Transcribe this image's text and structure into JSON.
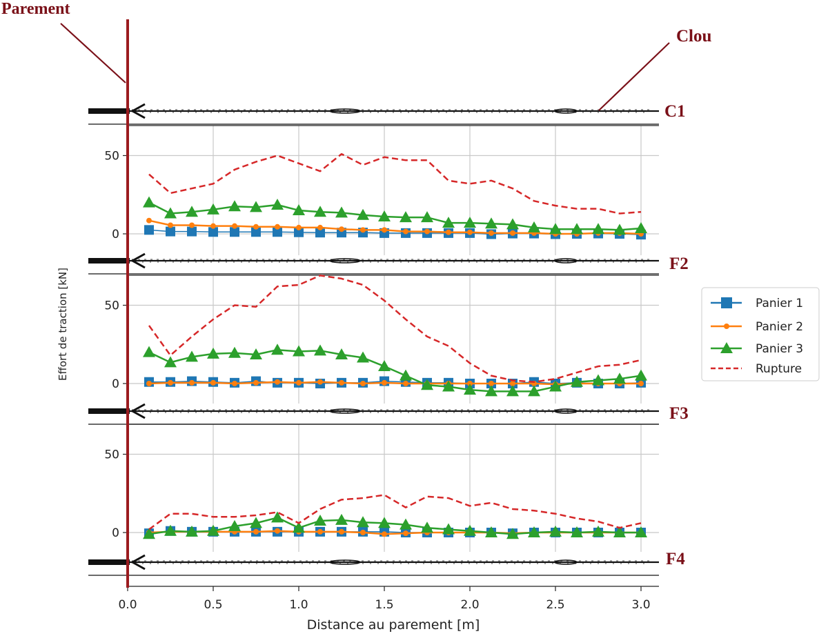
{
  "chart_data": {
    "type": "line",
    "xlabel": "Distance au parement [m]",
    "ylabel": "Effort de traction  [kN]",
    "xlim": [
      0,
      3.1
    ],
    "x_ticks": [
      "0.0",
      "0.5",
      "1.0",
      "1.5",
      "2.0",
      "2.5",
      "3.0"
    ],
    "y_ticks": [
      "0",
      "50"
    ],
    "grid": true,
    "legend": {
      "placement": "right",
      "entries": [
        "Panier 1",
        "Panier 2",
        "Panier 3",
        "Rupture"
      ]
    },
    "colors": {
      "panier1": "#1f77b4",
      "panier2": "#ff7f0e",
      "panier3": "#2ca02c",
      "rupture": "#d62728",
      "annotation": "#7a1018"
    },
    "x": [
      0.125,
      0.25,
      0.375,
      0.5,
      0.625,
      0.75,
      0.875,
      1.0,
      1.125,
      1.25,
      1.375,
      1.5,
      1.625,
      1.75,
      1.875,
      2.0,
      2.125,
      2.25,
      2.375,
      2.5,
      2.625,
      2.75,
      2.875,
      3.0
    ],
    "panels": [
      {
        "label": "C1",
        "series": [
          {
            "name": "Panier 1",
            "values": [
              2.5,
              1.5,
              1.5,
              1.2,
              1.2,
              1.2,
              1.2,
              1,
              0.8,
              0.8,
              0.8,
              0.5,
              0.5,
              0.5,
              0.5,
              0.5,
              -0.2,
              0.2,
              0.2,
              -0.2,
              0,
              0.2,
              0,
              -0.5
            ]
          },
          {
            "name": "Panier 2",
            "values": [
              8.5,
              5.5,
              5.5,
              5,
              5,
              4.5,
              4.5,
              4,
              4,
              3,
              2.5,
              2.5,
              1.5,
              1.5,
              1,
              1,
              0.5,
              0.5,
              0.5,
              0,
              0,
              0.5,
              0.5,
              0
            ]
          },
          {
            "name": "Panier 3",
            "values": [
              20,
              13,
              14,
              15.5,
              17.5,
              17,
              18.5,
              15,
              14,
              13.5,
              12,
              11,
              10.5,
              10.5,
              7,
              7,
              6.5,
              6,
              4,
              3,
              3,
              3,
              2.5,
              3.5
            ]
          },
          {
            "name": "Rupture",
            "values": [
              38,
              26,
              29,
              32,
              41,
              46,
              50,
              45,
              40,
              51,
              44,
              49,
              47,
              47,
              34,
              32,
              34,
              29,
              21,
              18,
              16,
              16,
              13,
              14
            ]
          }
        ]
      },
      {
        "label": "F2",
        "series": [
          {
            "name": "Panier 1",
            "values": [
              1,
              1,
              1.5,
              1,
              0.5,
              1.5,
              0.5,
              0.5,
              0,
              0.5,
              0.5,
              1.5,
              1,
              0.5,
              0.5,
              0,
              0,
              0,
              1,
              0,
              0.5,
              0,
              0,
              0.5
            ]
          },
          {
            "name": "Panier 2",
            "values": [
              0,
              0.5,
              0.5,
              0.5,
              0,
              0.5,
              1,
              0.5,
              1,
              0.5,
              0,
              0.5,
              0,
              0,
              0,
              0,
              0,
              0,
              0,
              -0.5,
              0,
              0,
              0,
              0
            ]
          },
          {
            "name": "Panier 3",
            "values": [
              20,
              13.5,
              17,
              19,
              19.5,
              18.5,
              21.5,
              20.5,
              21,
              18.5,
              16.5,
              11,
              5,
              -1,
              -2,
              -4,
              -5,
              -5,
              -5,
              -2,
              1,
              2,
              3,
              5
            ]
          },
          {
            "name": "Rupture",
            "values": [
              37,
              18,
              30,
              41,
              50,
              49,
              62,
              63,
              69,
              67,
              63,
              53,
              41,
              30,
              24,
              13,
              5,
              2,
              1,
              3,
              7,
              11,
              12,
              15
            ]
          }
        ]
      },
      {
        "label": "F3",
        "series": [
          {
            "name": "Panier 1",
            "values": [
              -0.5,
              1,
              0.5,
              0.5,
              0.5,
              0.5,
              0.5,
              0.5,
              0.5,
              0.5,
              0.5,
              0.5,
              0,
              0,
              0,
              0,
              0,
              -0.5,
              0,
              0,
              0,
              0,
              0,
              0
            ]
          },
          {
            "name": "Panier 2",
            "values": [
              0,
              0.5,
              0.5,
              0.5,
              0.5,
              0.5,
              1,
              0.5,
              0.5,
              0.5,
              0,
              -1,
              -0.5,
              0,
              0,
              0,
              0,
              -0.5,
              0,
              0,
              0,
              0,
              0,
              0
            ]
          },
          {
            "name": "Panier 3",
            "values": [
              -1,
              1,
              0.5,
              1,
              4,
              6,
              9.5,
              3,
              7.5,
              8,
              6.5,
              6,
              5,
              3,
              2,
              1,
              0,
              -1,
              0,
              0.5,
              0,
              0.5,
              0,
              0
            ]
          },
          {
            "name": "Rupture",
            "values": [
              2,
              12,
              12,
              10,
              10,
              11,
              13,
              6,
              15,
              21,
              22,
              24,
              16,
              23,
              22,
              17,
              19,
              15,
              14,
              12,
              9,
              7,
              3,
              6
            ]
          }
        ]
      }
    ],
    "annotations": {
      "parement": "Parement",
      "clou": "Clou",
      "nail_labels": [
        "C1",
        "F2",
        "F3",
        "F4"
      ]
    }
  }
}
